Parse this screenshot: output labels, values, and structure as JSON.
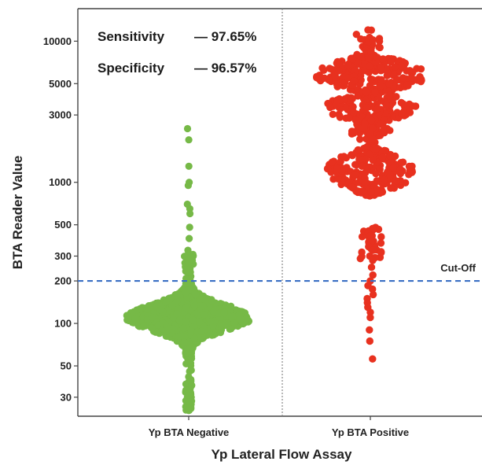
{
  "chart_data": {
    "type": "scatter",
    "subtype": "beeswarm",
    "xlabel": "Yp Lateral Flow Assay",
    "ylabel": "BTA Reader Value",
    "yscale": "log",
    "ylim": [
      22,
      17000
    ],
    "yticks": [
      30,
      50,
      100,
      200,
      300,
      500,
      1000,
      3000,
      5000,
      10000
    ],
    "categories": [
      "Yp BTA Negative",
      "Yp BTA Positive"
    ],
    "series": [
      {
        "color": "#76b947",
        "summary": {
          "values": [
            2400,
            2000,
            1300,
            1000,
            950,
            700,
            650,
            600,
            480,
            400,
            330
          ],
          "core_range": [
            40,
            230
          ],
          "center": 110,
          "min": 25
        }
      },
      {
        "color": "#e8311f",
        "summary": {
          "upper_cluster_range": [
            1900,
            12000
          ],
          "mid_cluster_range": [
            800,
            1800
          ],
          "tail_values": [
            470,
            420,
            380,
            350,
            330,
            300,
            280,
            250,
            220,
            200,
            185,
            175,
            160,
            150,
            140,
            130,
            120,
            110,
            90,
            75,
            56
          ],
          "max": 12000
        }
      }
    ],
    "cutoff": {
      "value": 200,
      "label": "Cut-Off",
      "color": "#3a6fc4"
    },
    "annotations": [
      {
        "label": "Sensitivity",
        "value": "— 97.65%"
      },
      {
        "label": "Specificity",
        "value": "— 96.57%"
      }
    ],
    "grid": false,
    "legend": "none"
  }
}
